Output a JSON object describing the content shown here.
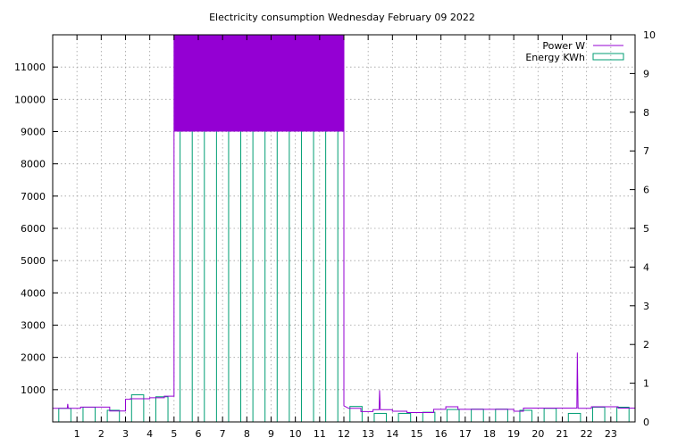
{
  "chart_data": {
    "type": "bar+line",
    "title": "Electricity consumption Wednesday February 09 2022",
    "xlim": [
      0,
      24
    ],
    "x_ticks": [
      1,
      2,
      3,
      4,
      5,
      6,
      7,
      8,
      9,
      10,
      11,
      12,
      13,
      14,
      15,
      16,
      17,
      18,
      19,
      20,
      21,
      22,
      23
    ],
    "y_left": {
      "lim": [
        0,
        12000
      ],
      "ticks": [
        1000,
        2000,
        3000,
        4000,
        5000,
        6000,
        7000,
        8000,
        9000,
        10000,
        11000
      ]
    },
    "y_right": {
      "lim": [
        0,
        10
      ],
      "ticks": [
        0,
        1,
        2,
        3,
        4,
        5,
        6,
        7,
        8,
        9,
        10
      ]
    },
    "grid": true,
    "legend_position": "top-right",
    "colors": {
      "power": "#9400d3",
      "energy": "#009e73"
    },
    "series": [
      {
        "name": "Power W",
        "style": "line",
        "axis": "left",
        "points": [
          [
            0,
            420
          ],
          [
            0.6,
            420
          ],
          [
            0.62,
            560
          ],
          [
            0.64,
            420
          ],
          [
            1.15,
            420
          ],
          [
            1.15,
            460
          ],
          [
            2.35,
            460
          ],
          [
            2.35,
            340
          ],
          [
            3.0,
            340
          ],
          [
            3.0,
            700
          ],
          [
            3.2,
            700
          ],
          [
            3.2,
            720
          ],
          [
            4.0,
            720
          ],
          [
            4.0,
            750
          ],
          [
            4.6,
            750
          ],
          [
            4.6,
            800
          ],
          [
            5.0,
            800
          ],
          [
            5.0,
            9000
          ],
          [
            5.0,
            12000
          ],
          [
            12.0,
            12000
          ],
          [
            12.0,
            9000
          ],
          [
            12.0,
            500
          ],
          [
            12.2,
            420
          ],
          [
            12.7,
            420
          ],
          [
            12.7,
            320
          ],
          [
            13.2,
            320
          ],
          [
            13.2,
            380
          ],
          [
            13.45,
            380
          ],
          [
            13.47,
            980
          ],
          [
            13.5,
            380
          ],
          [
            14.0,
            380
          ],
          [
            14.0,
            330
          ],
          [
            14.6,
            330
          ],
          [
            14.6,
            290
          ],
          [
            15.7,
            290
          ],
          [
            15.7,
            390
          ],
          [
            16.2,
            390
          ],
          [
            16.2,
            470
          ],
          [
            16.7,
            470
          ],
          [
            16.7,
            390
          ],
          [
            19.0,
            390
          ],
          [
            19.0,
            330
          ],
          [
            19.4,
            330
          ],
          [
            19.4,
            430
          ],
          [
            21.6,
            430
          ],
          [
            21.62,
            2150
          ],
          [
            21.65,
            420
          ],
          [
            22.2,
            420
          ],
          [
            22.2,
            470
          ],
          [
            23.3,
            470
          ],
          [
            23.3,
            430
          ],
          [
            24,
            430
          ]
        ]
      },
      {
        "name": "Energy KWh",
        "style": "bars",
        "axis": "right",
        "x": [
          0,
          1,
          2,
          3,
          4,
          5,
          6,
          7,
          8,
          9,
          10,
          11,
          12,
          13,
          14,
          15,
          16,
          17,
          18,
          19,
          20,
          21,
          22,
          23
        ],
        "values": [
          0.35,
          0.38,
          0.3,
          0.7,
          0.65,
          9.4,
          9.6,
          9.6,
          9.4,
          8.9,
          9.1,
          9.2,
          0.4,
          0.22,
          0.22,
          0.25,
          0.32,
          0.33,
          0.33,
          0.3,
          0.35,
          0.22,
          0.38,
          0.38
        ]
      }
    ]
  }
}
